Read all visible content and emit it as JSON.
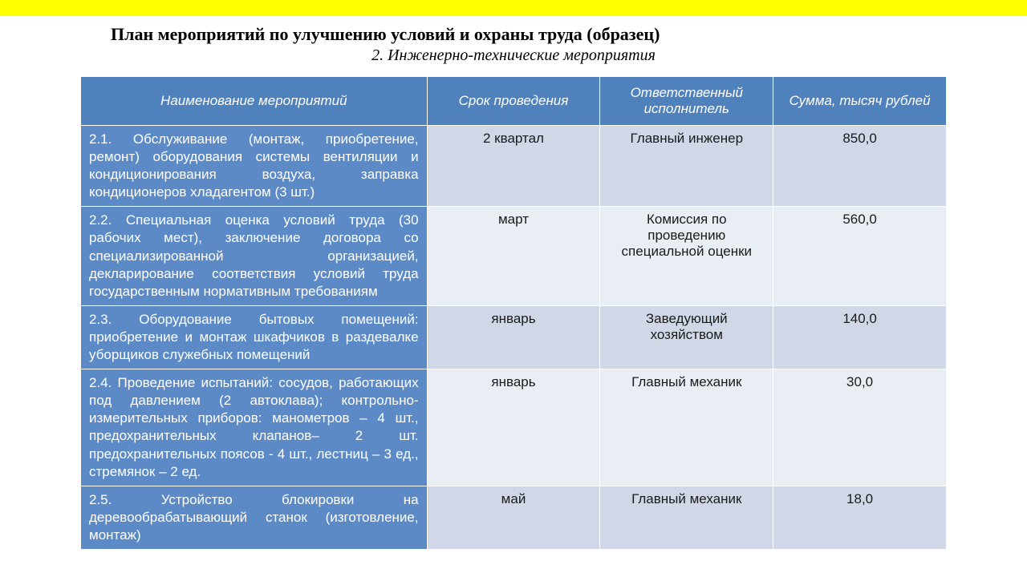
{
  "topbar_color": "#ffff00",
  "title": "План мероприятий по улучшению условий и охраны труда (образец)",
  "subtitle": "2.  Инженерно-технические мероприятия",
  "table": {
    "header_bg": "#4f81bd",
    "header_fg": "#ffffff",
    "name_bg": "#5b8ac6",
    "name_fg": "#ffffff",
    "row_even_bg": "#d0d8e8",
    "row_odd_bg": "#e9edf4",
    "col_widths_pct": [
      40,
      20,
      20,
      20
    ],
    "columns": [
      "Наименование мероприятий",
      "Срок проведения",
      "Ответственный исполнитель",
      "Сумма, тысяч рублей"
    ],
    "rows": [
      {
        "name": "2.1. Обслуживание (монтаж, приобретение, ремонт) оборудования системы вентиляции и кондиционирования воздуха, заправка кондиционеров хладагентом (3 шт.)",
        "term": "2 квартал",
        "responsible": "Главный инженер",
        "amount": "850,0"
      },
      {
        "name": "2.2. Специальная оценка условий труда (30 рабочих мест), заключение договора со специализированной организацией, декларирование соответствия условий труда государственным нормативным требованиям",
        "term": "март",
        "responsible": "Комиссия по проведению специальной оценки",
        "amount": "560,0"
      },
      {
        "name": "2.3. Оборудование бытовых помещений: приобретение и монтаж шкафчиков в раздевалке уборщиков служебных помещений",
        "term": "январь",
        "responsible": "Заведующий хозяйством",
        "amount": "140,0"
      },
      {
        "name": "2.4. Проведение испытаний: сосудов, работающих под давлением (2 автоклава); контрольно-измерительных приборов: манометров – 4 шт., предохранительных клапанов– 2 шт. предохранительных поясов - 4 шт., лестниц – 3 ед., стремянок – 2 ед.",
        "term": "январь",
        "responsible": "Главный механик",
        "amount": "30,0"
      },
      {
        "name": "2.5. Устройство блокировки на деревообрабатывающий станок (изготовление, монтаж)",
        "term": "май",
        "responsible": "Главный механик",
        "amount": "18,0"
      }
    ]
  }
}
